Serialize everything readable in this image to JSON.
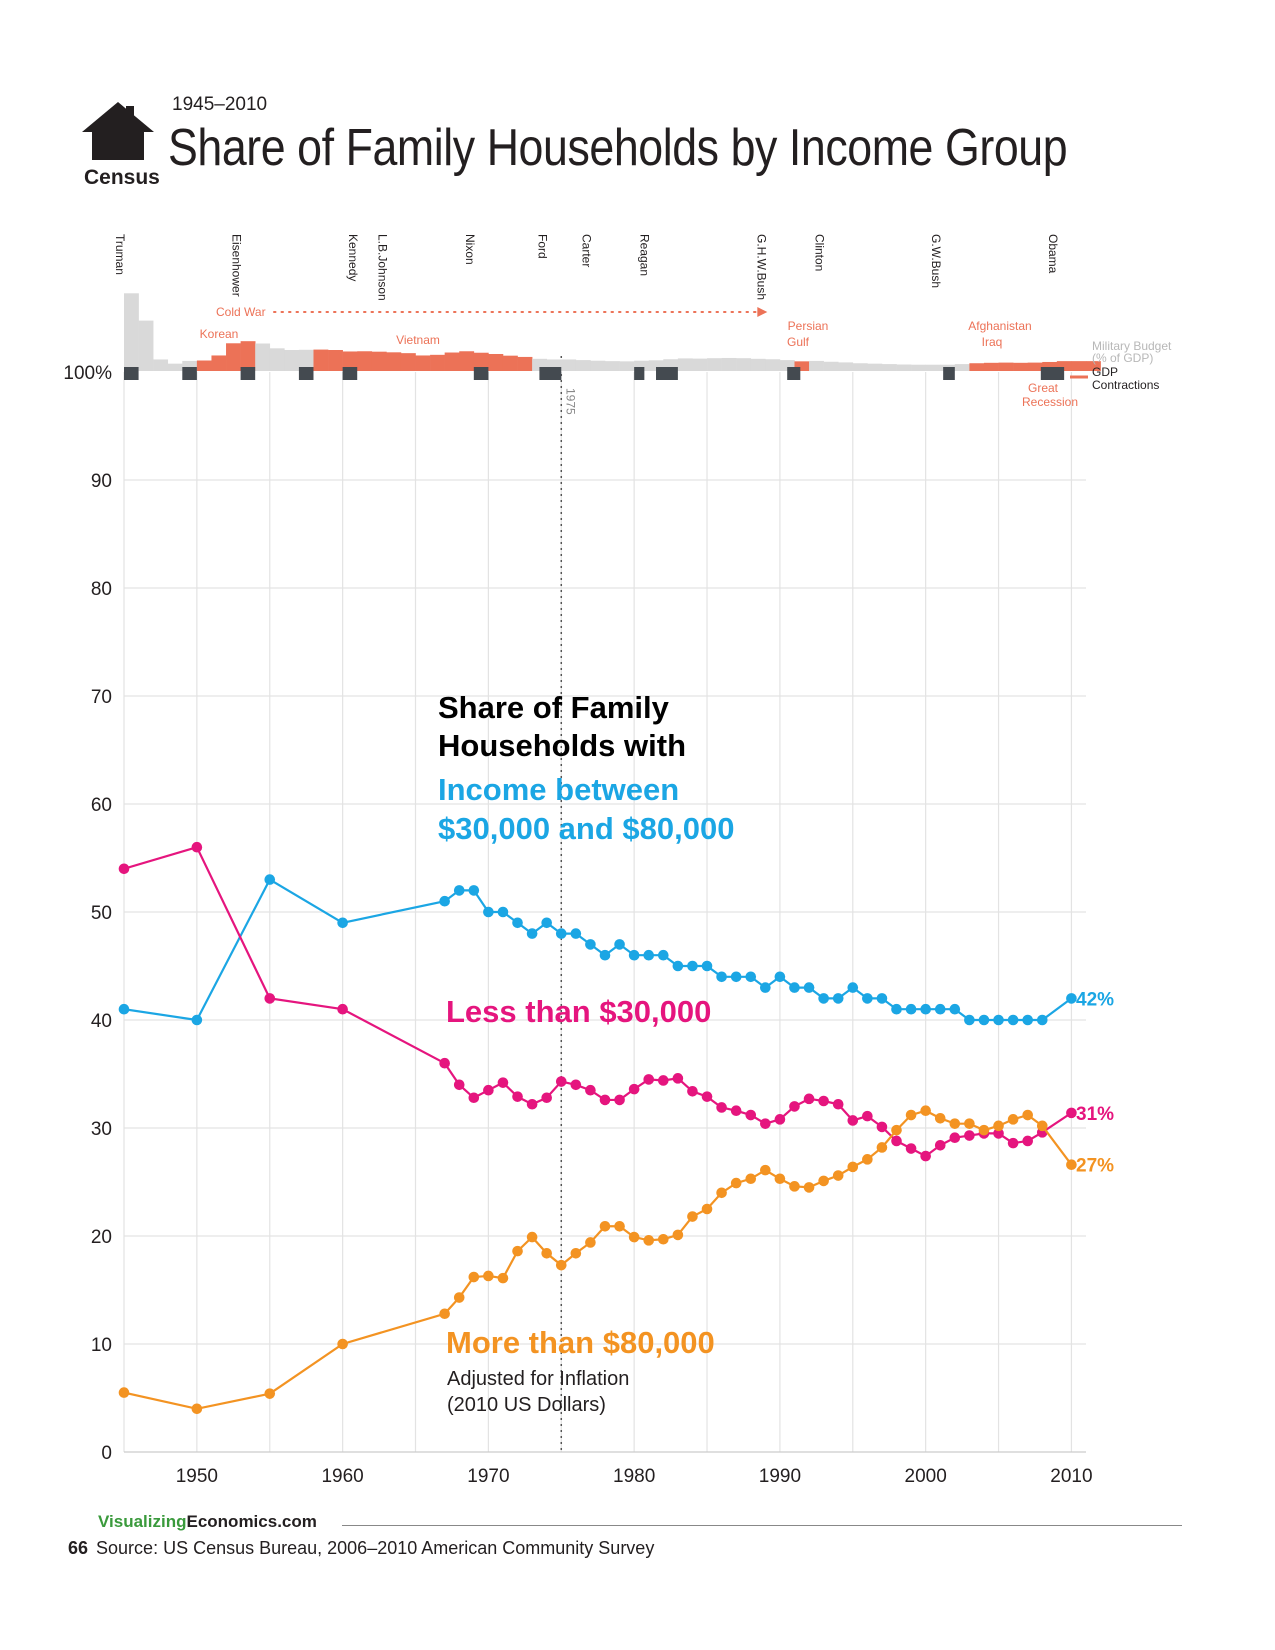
{
  "header": {
    "logo_label": "Census",
    "years": "1945–2010",
    "title": "Share of Family Households by Income Group"
  },
  "footer": {
    "brand_part1": "Visualizing",
    "brand_part2": "Economics.com",
    "page_number": "66",
    "source": "Source: US Census Bureau, 2006–2010 American Community Survey"
  },
  "colors": {
    "middle": "#1ba6e4",
    "low": "#e5157e",
    "high": "#f39322",
    "war": "#ec7257",
    "budget_gray": "#d9d9d9",
    "recession": "#444a50",
    "grid": "#e3e3e3"
  },
  "chart_data": {
    "type": "line",
    "title": "Share of Family Households with Income between $30,000 and $80,000",
    "ylabel": "",
    "xlim": [
      1945,
      2011
    ],
    "ylim": [
      0,
      100
    ],
    "x_ticks": [
      1950,
      1960,
      1970,
      1980,
      1990,
      2000,
      2010
    ],
    "y_ticks": [
      0,
      10,
      20,
      30,
      40,
      50,
      60,
      70,
      80,
      90
    ],
    "top_label": "100%",
    "reference_line": {
      "x": 1975,
      "label": "1975"
    },
    "annotation_title": [
      "Share of Family",
      "Households with"
    ],
    "annotation_middle": [
      "Income between",
      "$30,000 and $80,000"
    ],
    "annotation_low": "Less than $30,000",
    "annotation_high": "More than $80,000",
    "annotation_note": [
      "Adjusted for Inflation",
      "(2010 US Dollars)"
    ],
    "series": [
      {
        "name": "$30,000–$80,000",
        "color": "#1ba6e4",
        "end_label": "42%",
        "x": [
          1945,
          1950,
          1955,
          1960,
          1967,
          1968,
          1969,
          1970,
          1971,
          1972,
          1973,
          1974,
          1975,
          1976,
          1977,
          1978,
          1979,
          1980,
          1981,
          1982,
          1983,
          1984,
          1985,
          1986,
          1987,
          1988,
          1989,
          1990,
          1991,
          1992,
          1993,
          1994,
          1995,
          1996,
          1997,
          1998,
          1999,
          2000,
          2001,
          2002,
          2003,
          2004,
          2005,
          2006,
          2007,
          2008,
          2010
        ],
        "values": [
          41,
          40,
          53,
          49,
          51,
          52,
          52,
          50,
          50,
          49,
          48,
          49,
          48,
          48,
          47,
          46,
          47,
          46,
          46,
          46,
          45,
          45,
          45,
          44,
          44,
          44,
          43,
          44,
          43,
          43,
          42,
          42,
          43,
          42,
          42,
          41,
          41,
          41,
          41,
          41,
          40,
          40,
          40,
          40,
          40,
          40,
          42
        ]
      },
      {
        "name": "Less than $30,000",
        "color": "#e5157e",
        "end_label": "31%",
        "x": [
          1945,
          1950,
          1955,
          1960,
          1967,
          1968,
          1969,
          1970,
          1971,
          1972,
          1973,
          1974,
          1975,
          1976,
          1977,
          1978,
          1979,
          1980,
          1981,
          1982,
          1983,
          1984,
          1985,
          1986,
          1987,
          1988,
          1989,
          1990,
          1991,
          1992,
          1993,
          1994,
          1995,
          1996,
          1997,
          1998,
          1999,
          2000,
          2001,
          2002,
          2003,
          2004,
          2005,
          2006,
          2007,
          2008,
          2010
        ],
        "values": [
          54,
          56,
          42,
          41,
          36,
          34,
          32.8,
          33.5,
          34.2,
          32.9,
          32.2,
          32.8,
          34.3,
          34,
          33.5,
          32.6,
          32.6,
          33.6,
          34.5,
          34.4,
          34.6,
          33.4,
          32.9,
          31.9,
          31.6,
          31.2,
          30.4,
          30.8,
          32,
          32.7,
          32.5,
          32.2,
          30.7,
          31.1,
          30.1,
          28.8,
          28.1,
          27.4,
          28.4,
          29.1,
          29.3,
          29.5,
          29.5,
          28.6,
          28.8,
          29.6,
          31.4
        ]
      },
      {
        "name": "More than $80,000",
        "color": "#f39322",
        "end_label": "27%",
        "x": [
          1945,
          1950,
          1955,
          1960,
          1967,
          1968,
          1969,
          1970,
          1971,
          1972,
          1973,
          1974,
          1975,
          1976,
          1977,
          1978,
          1979,
          1980,
          1981,
          1982,
          1983,
          1984,
          1985,
          1986,
          1987,
          1988,
          1989,
          1990,
          1991,
          1992,
          1993,
          1994,
          1995,
          1996,
          1997,
          1998,
          1999,
          2000,
          2001,
          2002,
          2003,
          2004,
          2005,
          2006,
          2007,
          2008,
          2010
        ],
        "values": [
          5.5,
          4,
          5.4,
          10,
          12.8,
          14.3,
          16.2,
          16.3,
          16.1,
          18.6,
          19.9,
          18.4,
          17.3,
          18.4,
          19.4,
          20.9,
          20.9,
          19.9,
          19.6,
          19.7,
          20.1,
          21.8,
          22.5,
          24,
          24.9,
          25.3,
          26.1,
          25.3,
          24.6,
          24.5,
          25.1,
          25.6,
          26.4,
          27.1,
          28.2,
          29.8,
          31.2,
          31.6,
          30.9,
          30.4,
          30.4,
          29.8,
          30.2,
          30.8,
          31.2,
          30.2,
          26.6
        ]
      }
    ],
    "presidents": [
      {
        "name": "Truman",
        "year": 1945
      },
      {
        "name": "Eisenhower",
        "year": 1953
      },
      {
        "name": "Kennedy",
        "year": 1961
      },
      {
        "name": "L.B.Johnson",
        "year": 1963
      },
      {
        "name": "Nixon",
        "year": 1969
      },
      {
        "name": "Ford",
        "year": 1974
      },
      {
        "name": "Carter",
        "year": 1977
      },
      {
        "name": "Reagan",
        "year": 1981
      },
      {
        "name": "G.H.W.Bush",
        "year": 1989
      },
      {
        "name": "Clinton",
        "year": 1993
      },
      {
        "name": "G.W.Bush",
        "year": 2001
      },
      {
        "name": "Obama",
        "year": 2009
      }
    ],
    "military_budget": {
      "label": [
        "Military Budget",
        "(% of GDP)"
      ],
      "years": [
        1945,
        1946,
        1947,
        1948,
        1949,
        1950,
        1951,
        1952,
        1953,
        1954,
        1955,
        1956,
        1957,
        1958,
        1959,
        1960,
        1961,
        1962,
        1963,
        1964,
        1965,
        1966,
        1967,
        1968,
        1969,
        1970,
        1971,
        1972,
        1973,
        1974,
        1975,
        1976,
        1977,
        1978,
        1979,
        1980,
        1981,
        1982,
        1983,
        1984,
        1985,
        1986,
        1987,
        1988,
        1989,
        1990,
        1991,
        1992,
        1993,
        1994,
        1995,
        1996,
        1997,
        1998,
        1999,
        2000,
        2001,
        2002,
        2003,
        2004,
        2005,
        2006,
        2007,
        2008,
        2009,
        2010,
        2011
      ],
      "values": [
        37,
        24,
        5.5,
        3.5,
        4.8,
        5,
        7.4,
        13.2,
        14.2,
        13.1,
        10.8,
        10,
        10.1,
        10.2,
        10,
        9.3,
        9.4,
        9.2,
        8.9,
        8.5,
        7.4,
        7.7,
        8.8,
        9.4,
        8.7,
        8.1,
        7.3,
        6.7,
        5.8,
        5.5,
        5.5,
        5.2,
        4.9,
        4.7,
        4.6,
        4.9,
        5.1,
        5.6,
        6,
        5.9,
        6.1,
        6.2,
        6.1,
        5.8,
        5.6,
        5.2,
        4.6,
        4.8,
        4.4,
        4.1,
        3.7,
        3.5,
        3.3,
        3.1,
        3,
        3,
        3,
        3.3,
        3.7,
        3.9,
        4,
        3.9,
        4,
        4.3,
        4.7,
        4.7,
        4.7
      ],
      "war_years": [
        1950,
        1951,
        1952,
        1953,
        1958,
        1959,
        1960,
        1961,
        1962,
        1963,
        1964,
        1965,
        1966,
        1967,
        1968,
        1969,
        1970,
        1971,
        1972,
        1991,
        2003,
        2004,
        2005,
        2006,
        2007,
        2008,
        2009,
        2010,
        2011
      ]
    },
    "wars": [
      {
        "name": "Korean",
        "year": 1952
      },
      {
        "name": "Vietnam",
        "year": 1967
      },
      {
        "name": "Persian",
        "year": 1992.3
      },
      {
        "name": "Gulf",
        "year": 1992
      },
      {
        "name": "Afghanistan",
        "year": 2005
      },
      {
        "name": "Iraq",
        "year": 2005
      }
    ],
    "cold_war": {
      "label": "Cold War",
      "start": 1947,
      "end": 1989
    },
    "gdp_contractions": {
      "label": "GDP",
      "label2": "Contractions",
      "periods": [
        [
          1945,
          1946
        ],
        [
          1949,
          1950
        ],
        [
          1953,
          1954
        ],
        [
          1957,
          1958
        ],
        [
          1960,
          1961
        ],
        [
          1969,
          1970
        ],
        [
          1973.5,
          1975
        ],
        [
          1980,
          1980.7
        ],
        [
          1981.5,
          1983
        ],
        [
          1990.5,
          1991.4
        ],
        [
          2001.2,
          2002
        ],
        [
          2007.9,
          2009.5
        ]
      ]
    },
    "great_recession": [
      "Great",
      "Recession"
    ]
  }
}
